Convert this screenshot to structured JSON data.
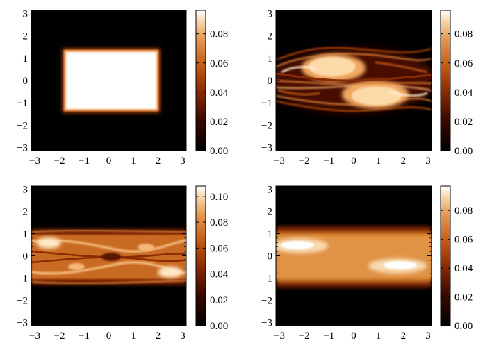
{
  "chart_data": [
    {
      "type": "heatmap",
      "panel": "top-left",
      "title": "",
      "xlabel": "",
      "ylabel": "",
      "xlim": [
        -3.14,
        3.14
      ],
      "ylim": [
        -3.14,
        3.14
      ],
      "xticks": [
        -3,
        -2,
        -1,
        0,
        1,
        2,
        3
      ],
      "yticks": [
        -3,
        -2,
        -1,
        0,
        1,
        2,
        3
      ],
      "xtick_labels": [
        "−3",
        "−2",
        "−1",
        "0",
        "1",
        "2",
        "3"
      ],
      "ytick_labels": [
        "−3",
        "−2",
        "−1",
        "0",
        "1",
        "2",
        "3"
      ],
      "colorbar": {
        "min": 0.0,
        "max": 0.096,
        "ticks": [
          "0.00",
          "0.02",
          "0.04",
          "0.06",
          "0.08"
        ]
      },
      "colormap": "gist_heat-like (black → red → orange → white)",
      "features": [
        {
          "kind": "uniform rectangle",
          "x": [
            -1.8,
            1.8
          ],
          "y": [
            -1.25,
            1.25
          ],
          "value": 0.096
        }
      ]
    },
    {
      "type": "heatmap",
      "panel": "top-right",
      "title": "",
      "xlabel": "",
      "ylabel": "",
      "xlim": [
        -3.14,
        3.14
      ],
      "ylim": [
        -3.14,
        3.14
      ],
      "xticks": [
        -3,
        -2,
        -1,
        0,
        1,
        2,
        3
      ],
      "yticks": [
        -3,
        -2,
        -1,
        0,
        1,
        2,
        3
      ],
      "xtick_labels": [
        "−3",
        "−2",
        "−1",
        "0",
        "1",
        "2",
        "3"
      ],
      "ytick_labels": [
        "−3",
        "−2",
        "−1",
        "0",
        "1",
        "2",
        "3"
      ],
      "colorbar": {
        "min": 0.0,
        "max": 0.096,
        "ticks": [
          "0.00",
          "0.02",
          "0.04",
          "0.06",
          "0.08"
        ]
      },
      "colormap": "gist_heat-like (black → red → orange → white)",
      "features": [
        {
          "kind": "vortex blob",
          "center": [
            -0.8,
            0.45
          ],
          "value": 0.09
        },
        {
          "kind": "vortex blob",
          "center": [
            0.9,
            -0.55
          ],
          "value": 0.09
        },
        {
          "kind": "filaments",
          "y_range": [
            -1.4,
            1.4
          ]
        }
      ]
    },
    {
      "type": "heatmap",
      "panel": "bottom-left",
      "title": "",
      "xlabel": "",
      "ylabel": "",
      "xlim": [
        -3.14,
        3.14
      ],
      "ylim": [
        -3.14,
        3.14
      ],
      "xticks": [
        -3,
        -2,
        -1,
        0,
        1,
        2,
        3
      ],
      "yticks": [
        -3,
        -2,
        -1,
        0,
        1,
        2,
        3
      ],
      "xtick_labels": [
        "−3",
        "−2",
        "−1",
        "0",
        "1",
        "2",
        "3"
      ],
      "ytick_labels": [
        "−3",
        "−2",
        "−1",
        "0",
        "1",
        "2",
        "3"
      ],
      "colorbar": {
        "min": 0.0,
        "max": 0.108,
        "ticks": [
          "0.00",
          "0.02",
          "0.04",
          "0.06",
          "0.08",
          "0.10"
        ]
      },
      "colormap": "gist_heat-like (black → red → orange → white)",
      "features": [
        {
          "kind": "filamented band",
          "y_range": [
            -1.1,
            1.1
          ],
          "value": 0.07
        }
      ]
    },
    {
      "type": "heatmap",
      "panel": "bottom-right",
      "title": "",
      "xlabel": "",
      "ylabel": "",
      "xlim": [
        -3.14,
        3.14
      ],
      "ylim": [
        -3.14,
        3.14
      ],
      "xticks": [
        -3,
        -2,
        -1,
        0,
        1,
        2,
        3
      ],
      "yticks": [
        -3,
        -2,
        -1,
        0,
        1,
        2,
        3
      ],
      "xtick_labels": [
        "−3",
        "−2",
        "−1",
        "0",
        "1",
        "2",
        "3"
      ],
      "ytick_labels": [
        "−3",
        "−2",
        "−1",
        "0",
        "1",
        "2",
        "3"
      ],
      "colorbar": {
        "min": 0.0,
        "max": 0.097,
        "ticks": [
          "0.00",
          "0.02",
          "0.04",
          "0.06",
          "0.08"
        ]
      },
      "colormap": "gist_heat-like (black → red → orange → white)",
      "features": [
        {
          "kind": "smooth band",
          "y_range": [
            -1.0,
            1.0
          ],
          "value": 0.07
        },
        {
          "kind": "bright spot",
          "center": [
            -2.0,
            0.4
          ],
          "value": 0.095
        },
        {
          "kind": "bright spot",
          "center": [
            1.5,
            -0.4
          ],
          "value": 0.095
        }
      ]
    }
  ]
}
